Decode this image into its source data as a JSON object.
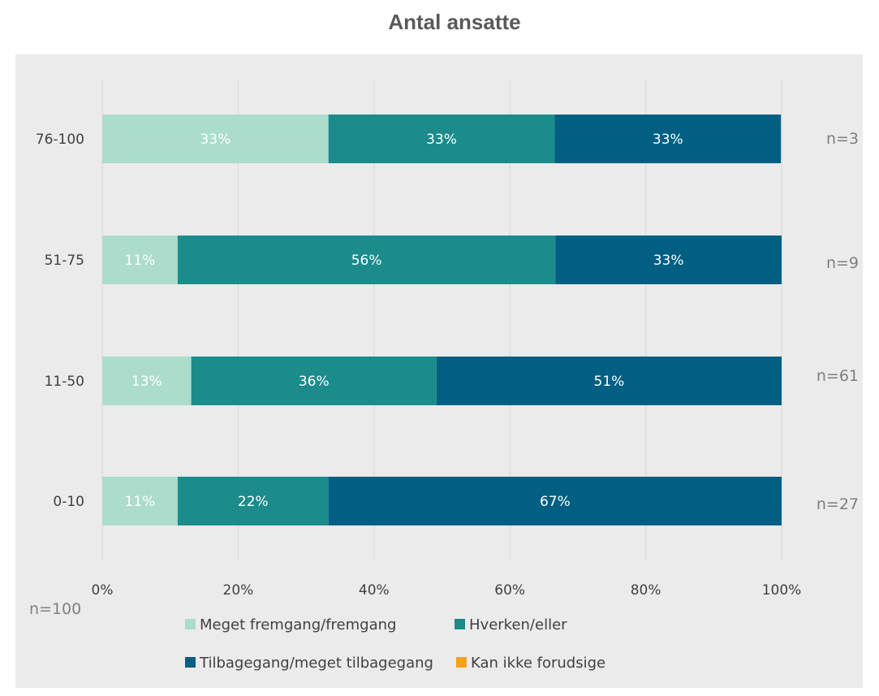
{
  "chart_data": {
    "type": "bar",
    "orientation": "horizontal",
    "stacked": "percent",
    "title": "Antal ansatte",
    "categories": [
      "76-100",
      "51-75",
      "11-50",
      "0-10"
    ],
    "series": [
      {
        "name": "Meget fremgang/fremgang",
        "color": "#acdccb",
        "label_color": "#ffffff",
        "values": [
          33.3,
          11.1,
          13.1,
          11.1
        ],
        "labels": [
          "33%",
          "11%",
          "13%",
          "11%"
        ]
      },
      {
        "name": "Hverken/eller",
        "color": "#1b8b8c",
        "label_color": "#ffffff",
        "values": [
          33.3,
          55.6,
          36.1,
          22.2
        ],
        "labels": [
          "33%",
          "56%",
          "36%",
          "22%"
        ]
      },
      {
        "name": "Tilbagegang/meget tilbagegang",
        "color": "#005f83",
        "label_color": "#ffffff",
        "values": [
          33.3,
          33.3,
          50.8,
          66.7
        ],
        "labels": [
          "33%",
          "33%",
          "51%",
          "67%"
        ]
      },
      {
        "name": "Kan ikke forudsige",
        "color": "#f5a31a",
        "label_color": "#ffffff",
        "values": [
          0,
          0,
          0,
          0
        ],
        "labels": [
          "",
          "",
          "",
          ""
        ]
      }
    ],
    "n_labels": [
      "n=3",
      "n=9",
      "n=61",
      "n=27"
    ],
    "xlim": [
      0,
      100
    ],
    "xticks": [
      0,
      20,
      40,
      60,
      80,
      100
    ],
    "xtick_labels": [
      "0%",
      "20%",
      "40%",
      "60%",
      "80%",
      "100%"
    ],
    "grid": true,
    "legend_position": "bottom",
    "total_label": "n=100"
  },
  "colors": {
    "background": "#ebebeb",
    "gridline": "#d9d9d9",
    "text": "#404040",
    "muted": "#7f7f7f"
  }
}
